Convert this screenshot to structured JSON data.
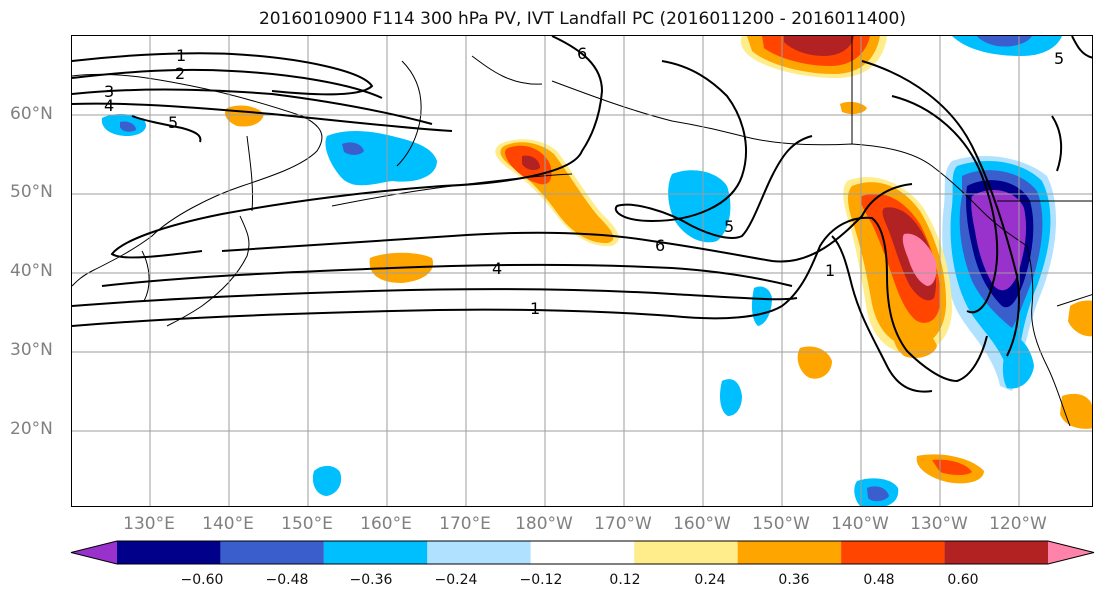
{
  "title": "2016010900 F114 300 hPa PV, IVT Landfall PC (2016011200 - 2016011400)",
  "lat_labels": [
    "60°N",
    "50°N",
    "40°N",
    "30°N",
    "20°N"
  ],
  "lon_labels": [
    "130°E",
    "140°E",
    "150°E",
    "160°E",
    "170°E",
    "180°W",
    "170°W",
    "160°W",
    "150°W",
    "140°W",
    "130°W",
    "120°W"
  ],
  "contour_labels": [
    "1",
    "2",
    "3",
    "4",
    "5",
    "6",
    "6",
    "4",
    "1",
    "1",
    "5",
    "5"
  ],
  "colorbar": {
    "ticks": [
      "−0.60",
      "−0.48",
      "−0.36",
      "−0.24",
      "−0.12",
      "0.12",
      "0.24",
      "0.36",
      "0.48",
      "0.60"
    ],
    "colors": [
      "#9932cc",
      "#00008b",
      "#3a5fcd",
      "#00bfff",
      "#b0e2ff",
      "#ffffff",
      "#ffec8b",
      "#ffa500",
      "#ff4500",
      "#b22222",
      "#ff82ab"
    ]
  }
}
